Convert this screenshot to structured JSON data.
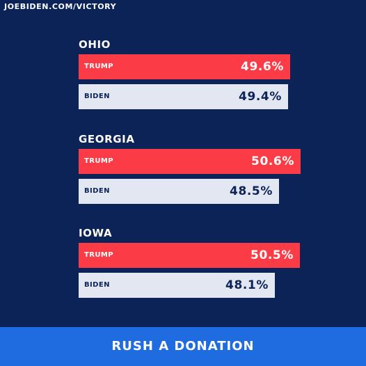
{
  "header": {
    "url": "JOEBIDEN.COM/VICTORY"
  },
  "colors": {
    "background": "#0c2358",
    "trump": "#fb3c47",
    "biden": "#e2e7f2",
    "button": "#1f6ce0"
  },
  "chart_data": {
    "type": "bar",
    "orientation": "horizontal",
    "categories": [
      "OHIO",
      "GEORGIA",
      "IOWA"
    ],
    "series": [
      {
        "name": "TRUMP",
        "values": [
          49.6,
          50.6,
          50.5
        ],
        "labels": [
          "49.6%",
          "50.6%",
          "50.5%"
        ]
      },
      {
        "name": "BIDEN",
        "values": [
          49.4,
          48.5,
          48.1
        ],
        "labels": [
          "49.4%",
          "48.5%",
          "48.1%"
        ]
      }
    ]
  },
  "cta": {
    "label": "RUSH A DONATION"
  }
}
